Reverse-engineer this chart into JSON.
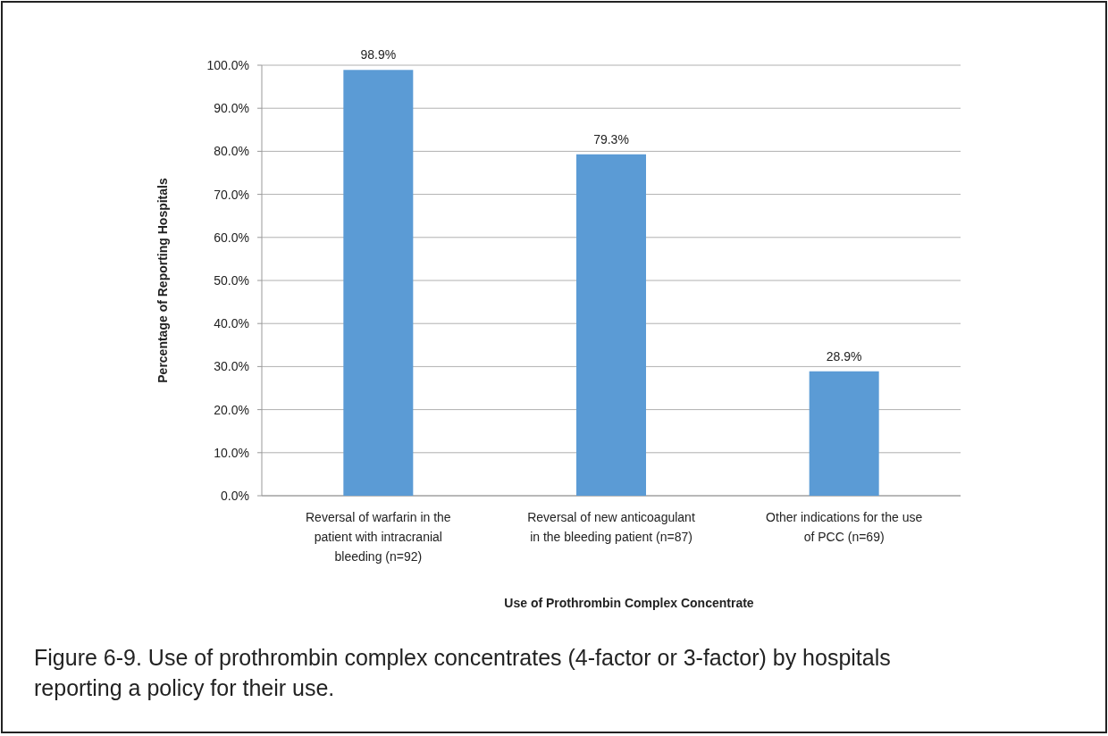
{
  "chart_data": {
    "type": "bar",
    "xlabel": "Use of Prothrombin Complex Concentrate",
    "ylabel": "Percentage of Reporting Hospitals",
    "categories": [
      "Reversal of warfarin in the patient with intracranial bleeding (n=92)",
      "Reversal of new anticoagulant in the bleeding patient (n=87)",
      "Other indications for the use of PCC (n=69)"
    ],
    "values": [
      98.9,
      79.3,
      28.9
    ],
    "color": "#5b9bd5",
    "value_labels": [
      "98.9%",
      "79.3%",
      "28.9%"
    ],
    "ylim": [
      0,
      100
    ],
    "yticks": [
      {
        "value": 0,
        "label": "0.0%"
      },
      {
        "value": 10,
        "label": "10.0%"
      },
      {
        "value": 20,
        "label": "20.0%"
      },
      {
        "value": 30,
        "label": "30.0%"
      },
      {
        "value": 40,
        "label": "40.0%"
      },
      {
        "value": 50,
        "label": "50.0%"
      },
      {
        "value": 60,
        "label": "60.0%"
      },
      {
        "value": 70,
        "label": "70.0%"
      },
      {
        "value": 80,
        "label": "80.0%"
      },
      {
        "value": 90,
        "label": "90.0%"
      },
      {
        "value": 100,
        "label": "100.0%"
      }
    ],
    "grid": "y",
    "annotations": [
      "Figure 6-9. Use of prothrombin complex concentrates (4-factor or 3-factor) by hospitals reporting a policy for their use."
    ]
  }
}
